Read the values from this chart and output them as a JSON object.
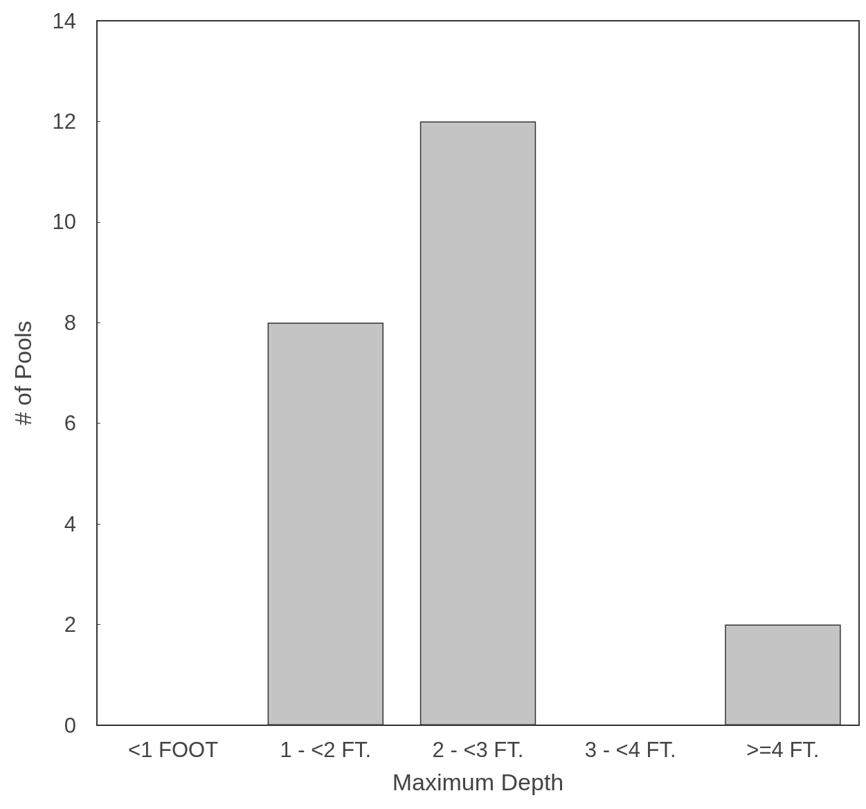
{
  "chart_data": {
    "type": "bar",
    "xlabel": "Maximum Depth",
    "ylabel": "# of Pools",
    "categories": [
      "<1 FOOT",
      "1 - <2 FT.",
      "2 - <3 FT.",
      "3 - <4 FT.",
      ">=4 FT."
    ],
    "values": [
      0,
      8,
      12,
      0,
      2
    ],
    "color": "#c4c4c4",
    "ylim": [
      0,
      14
    ],
    "yticks": [
      0,
      2,
      4,
      6,
      8,
      10,
      12,
      14
    ],
    "grid": false
  }
}
